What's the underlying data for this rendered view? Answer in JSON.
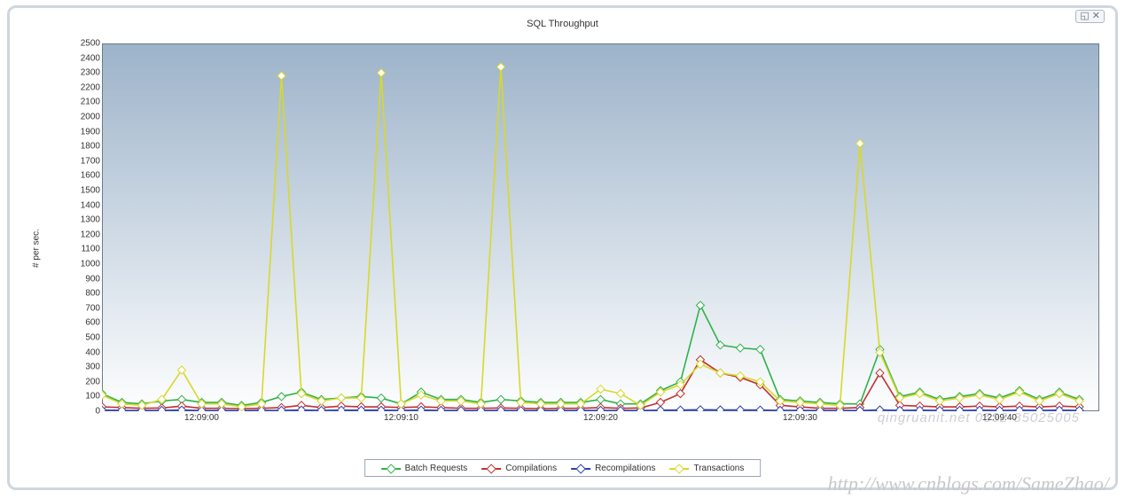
{
  "title": "SQL Throughput",
  "ylabel": "# per sec.",
  "window_icons": "◱ ✕",
  "watermark": "http://www.cnblogs.com/SameZhao/",
  "watermark2": "qingruanit.net 0532-85025005",
  "chart": {
    "type": "line",
    "ylim": [
      0,
      2500
    ],
    "ytick_step": 100,
    "xlim": [
      0,
      50
    ],
    "xticks": [
      {
        "pos": 5,
        "label": "12:09:00"
      },
      {
        "pos": 15,
        "label": "12:09:10"
      },
      {
        "pos": 25,
        "label": "12:09:20"
      },
      {
        "pos": 35,
        "label": "12:09:30"
      },
      {
        "pos": 45,
        "label": "12:09:40"
      }
    ],
    "background_gradient_top": "#9db3ca",
    "background_gradient_bottom": "#fdfefe",
    "border_color": "#6d7a8a",
    "grid_color": "rgba(160,175,192,.35)",
    "panel_border": "#cfd6de",
    "line_width": 1.6,
    "marker_size": 3.2,
    "series": [
      {
        "name": "Batch Requests",
        "color": "#2fb14a",
        "data": [
          120,
          60,
          50,
          70,
          80,
          60,
          60,
          40,
          60,
          100,
          130,
          80,
          90,
          100,
          90,
          50,
          130,
          80,
          80,
          60,
          80,
          70,
          60,
          60,
          60,
          80,
          50,
          50,
          140,
          200,
          720,
          450,
          430,
          420,
          80,
          70,
          60,
          50,
          50,
          420,
          100,
          130,
          80,
          100,
          120,
          90,
          140,
          80,
          130,
          80
        ]
      },
      {
        "name": "Compilations",
        "color": "#c23030",
        "data": [
          30,
          25,
          20,
          22,
          35,
          20,
          20,
          18,
          20,
          25,
          40,
          25,
          35,
          30,
          30,
          25,
          30,
          25,
          20,
          20,
          22,
          20,
          18,
          20,
          20,
          25,
          20,
          22,
          60,
          120,
          350,
          260,
          230,
          180,
          40,
          30,
          20,
          20,
          25,
          260,
          40,
          35,
          30,
          30,
          35,
          30,
          35,
          30,
          35,
          30
        ]
      },
      {
        "name": "Recompilations",
        "color": "#2a3fb0",
        "data": [
          8,
          6,
          5,
          6,
          8,
          5,
          5,
          5,
          6,
          6,
          8,
          6,
          7,
          7,
          7,
          6,
          8,
          6,
          5,
          5,
          6,
          5,
          5,
          5,
          5,
          6,
          5,
          5,
          7,
          8,
          10,
          9,
          9,
          8,
          6,
          6,
          5,
          5,
          5,
          9,
          6,
          7,
          6,
          6,
          7,
          6,
          7,
          6,
          7,
          6
        ]
      },
      {
        "name": "Transactions",
        "color": "#d8d82a",
        "data": [
          110,
          50,
          40,
          80,
          280,
          50,
          50,
          30,
          50,
          2280,
          120,
          70,
          90,
          90,
          2300,
          50,
          110,
          70,
          70,
          50,
          2340,
          60,
          50,
          50,
          50,
          150,
          120,
          40,
          130,
          180,
          320,
          260,
          240,
          200,
          70,
          60,
          50,
          40,
          1820,
          400,
          90,
          120,
          70,
          90,
          110,
          80,
          130,
          70,
          120,
          70
        ]
      }
    ]
  },
  "legend": {
    "items": [
      {
        "label": "Batch Requests",
        "color": "#2fb14a"
      },
      {
        "label": "Compilations",
        "color": "#c23030"
      },
      {
        "label": "Recompilations",
        "color": "#2a3fb0"
      },
      {
        "label": "Transactions",
        "color": "#d8d82a"
      }
    ]
  }
}
